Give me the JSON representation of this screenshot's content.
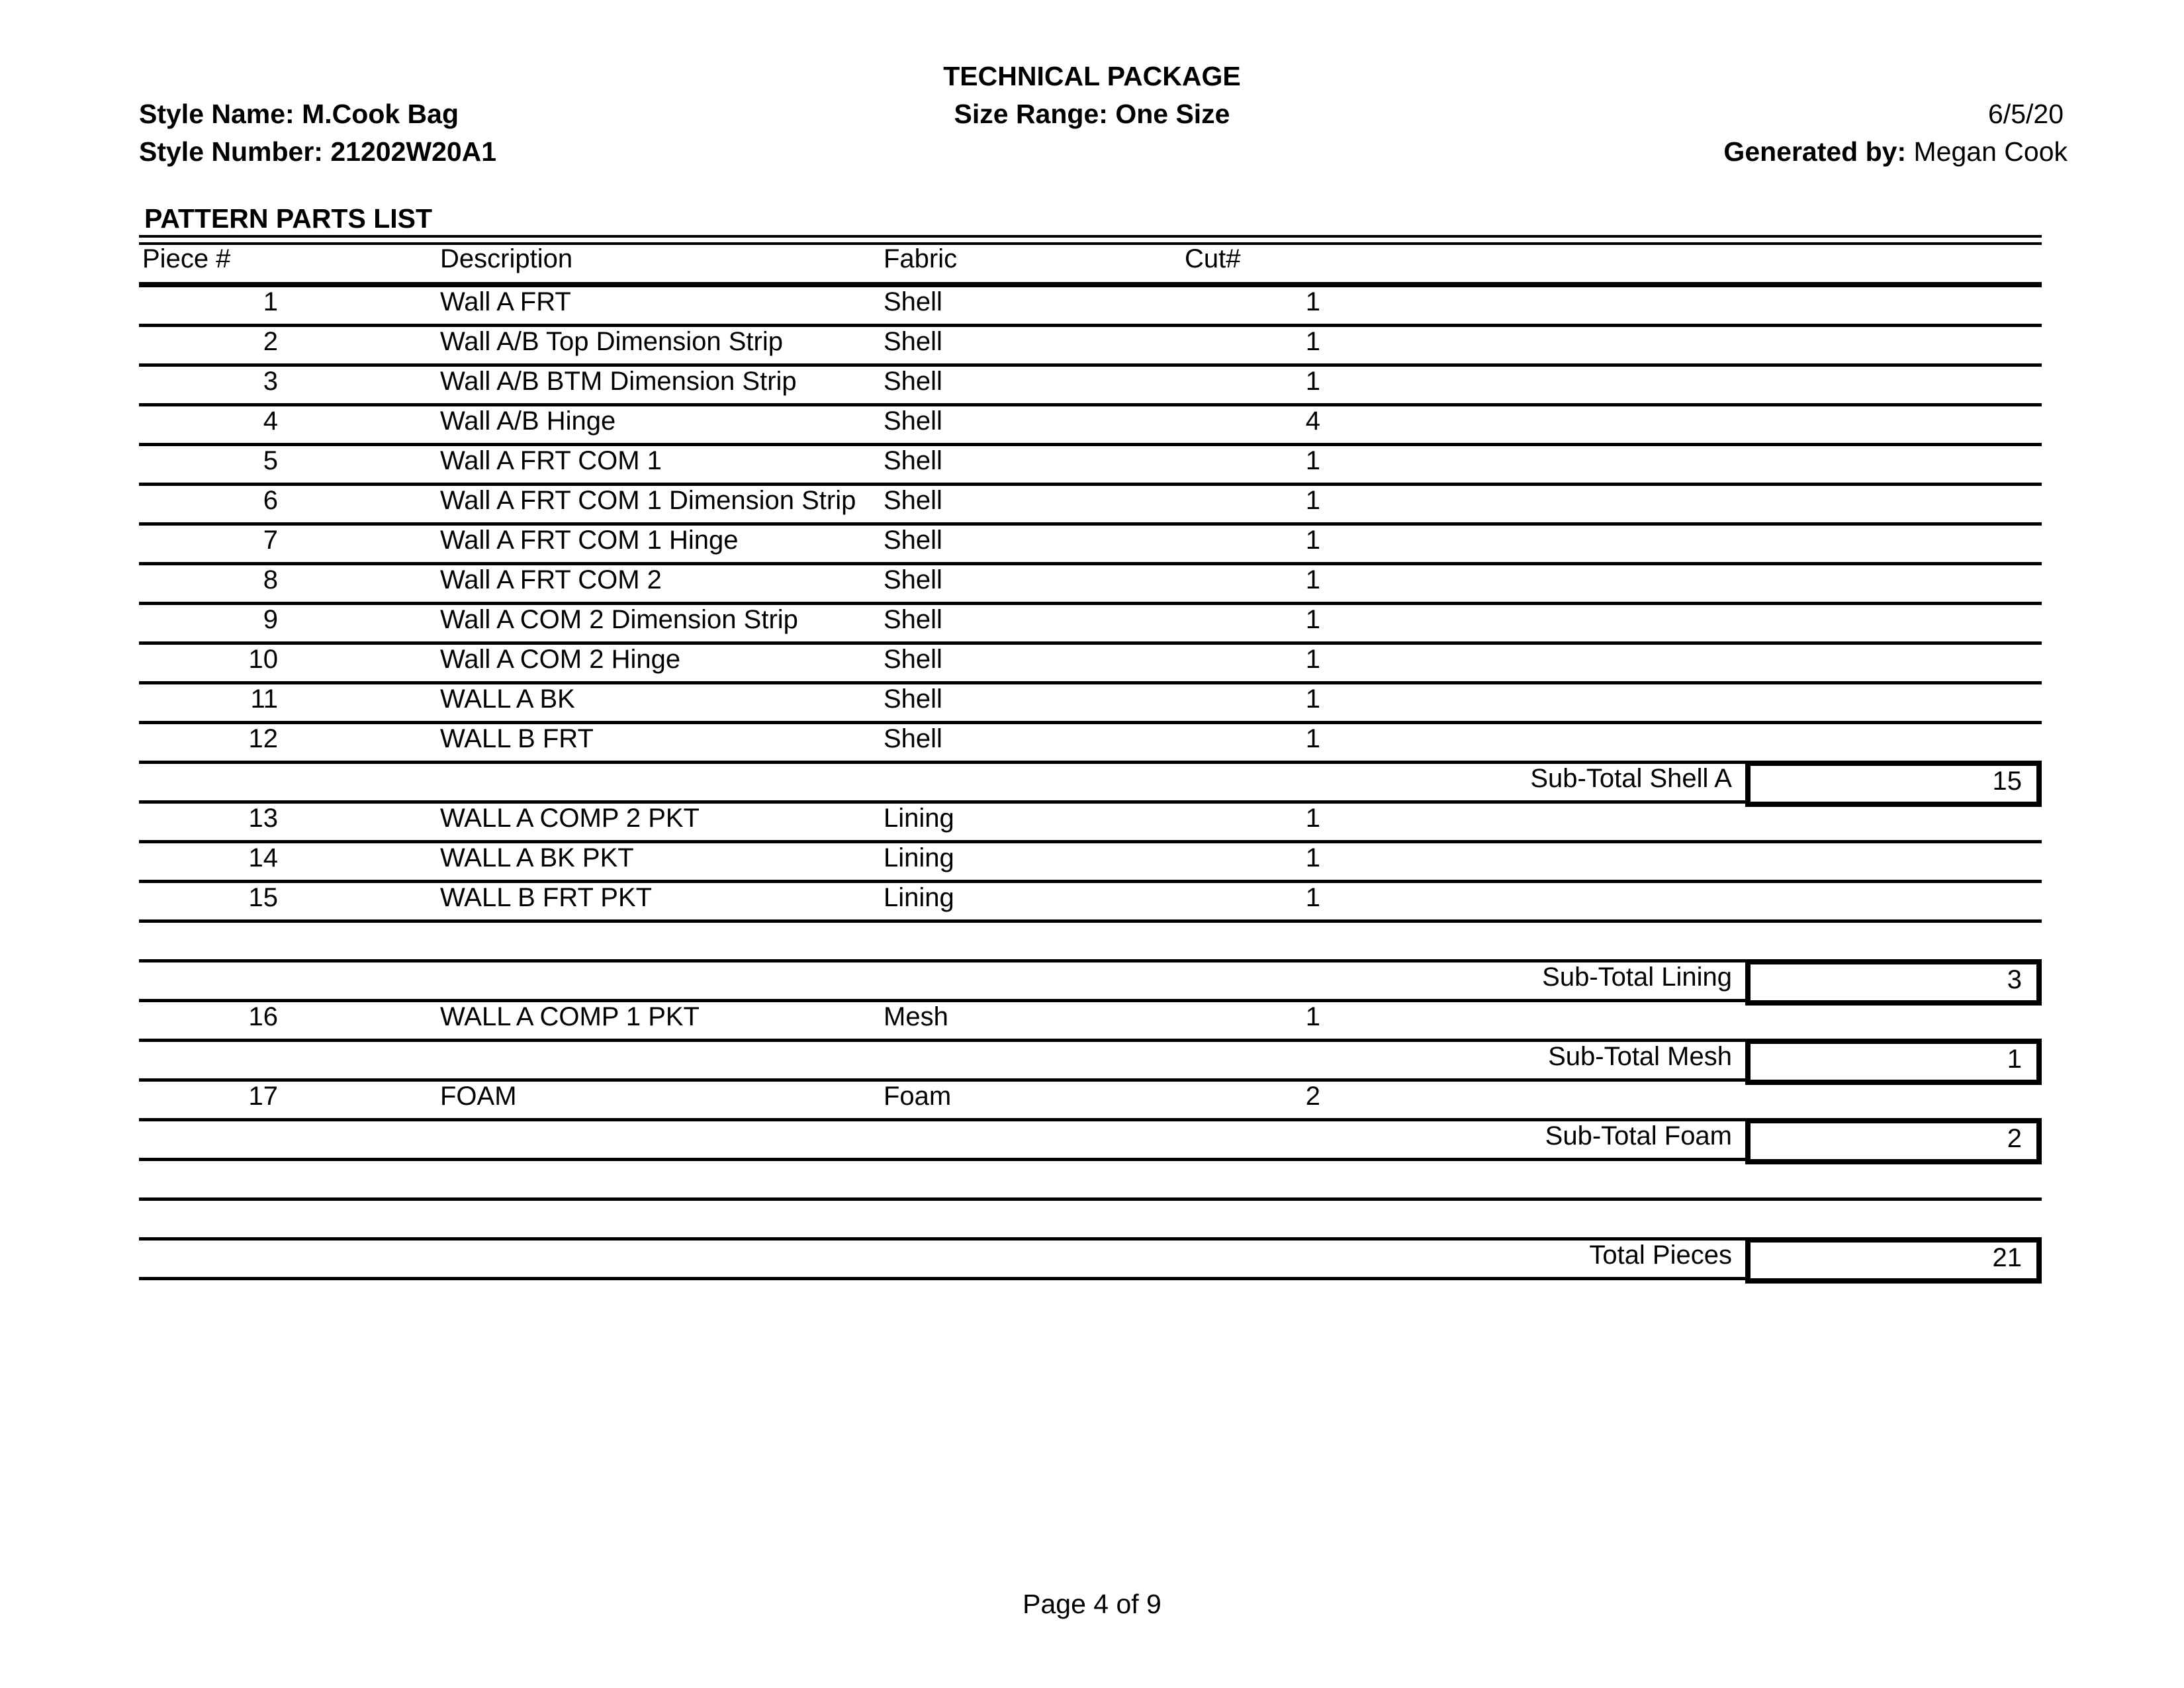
{
  "page": {
    "title": "TECHNICAL PACKAGE",
    "style_name_label": "Style Name:",
    "style_name_value": "M.Cook Bag",
    "style_number_label": "Style Number:",
    "style_number_value": "21202W20A1",
    "size_range_label": "Size Range:",
    "size_range_value": "One Size",
    "date": "6/5/20",
    "generated_by_label": "Generated by:",
    "generated_by_value": "Megan Cook",
    "footer": "Page 4 of 9"
  },
  "parts_list": {
    "heading": "PATTERN PARTS LIST",
    "columns": [
      "Piece #",
      "Description",
      "Fabric",
      "Cut#"
    ],
    "rows": [
      {
        "piece": "1",
        "description": "Wall A FRT",
        "fabric": "Shell",
        "cut": "1"
      },
      {
        "piece": "2",
        "description": "Wall A/B Top  Dimension Strip",
        "fabric": "Shell",
        "cut": "1"
      },
      {
        "piece": "3",
        "description": "Wall A/B BTM Dimension Strip",
        "fabric": "Shell",
        "cut": "1"
      },
      {
        "piece": "4",
        "description": "Wall A/B Hinge",
        "fabric": "Shell",
        "cut": "4"
      },
      {
        "piece": "5",
        "description": "Wall A FRT COM 1",
        "fabric": "Shell",
        "cut": "1"
      },
      {
        "piece": "6",
        "description": "Wall A FRT COM 1 Dimension Strip",
        "fabric": "Shell",
        "cut": "1"
      },
      {
        "piece": "7",
        "description": "Wall A FRT COM 1  Hinge",
        "fabric": "Shell",
        "cut": "1"
      },
      {
        "piece": "8",
        "description": "Wall A FRT COM 2",
        "fabric": "Shell",
        "cut": "1"
      },
      {
        "piece": "9",
        "description": "Wall A COM 2 Dimension Strip",
        "fabric": "Shell",
        "cut": "1"
      },
      {
        "piece": "10",
        "description": "Wall A COM 2 Hinge",
        "fabric": "Shell",
        "cut": "1"
      },
      {
        "piece": "11",
        "description": "WALL A BK",
        "fabric": "Shell",
        "cut": "1"
      },
      {
        "piece": "12",
        "description": "WALL B FRT",
        "fabric": "Shell",
        "cut": "1"
      },
      {
        "piece": "13",
        "description": "WALL A COMP 2 PKT",
        "fabric": "Lining",
        "cut": "1"
      },
      {
        "piece": "14",
        "description": "WALL A BK PKT",
        "fabric": "Lining",
        "cut": "1"
      },
      {
        "piece": "15",
        "description": "WALL B FRT PKT",
        "fabric": "Lining",
        "cut": "1"
      },
      {
        "piece": "16",
        "description": "WALL A COMP 1 PKT",
        "fabric": "Mesh",
        "cut": "1"
      },
      {
        "piece": "17",
        "description": "FOAM",
        "fabric": "Foam",
        "cut": "2"
      }
    ],
    "subtotals": [
      {
        "label": "Sub-Total Shell A",
        "value": "15"
      },
      {
        "label": "Sub-Total Lining",
        "value": "3"
      },
      {
        "label": "Sub-Total Mesh",
        "value": "1"
      },
      {
        "label": "Sub-Total Foam",
        "value": "2"
      }
    ],
    "total": {
      "label": "Total Pieces",
      "value": "21"
    }
  }
}
